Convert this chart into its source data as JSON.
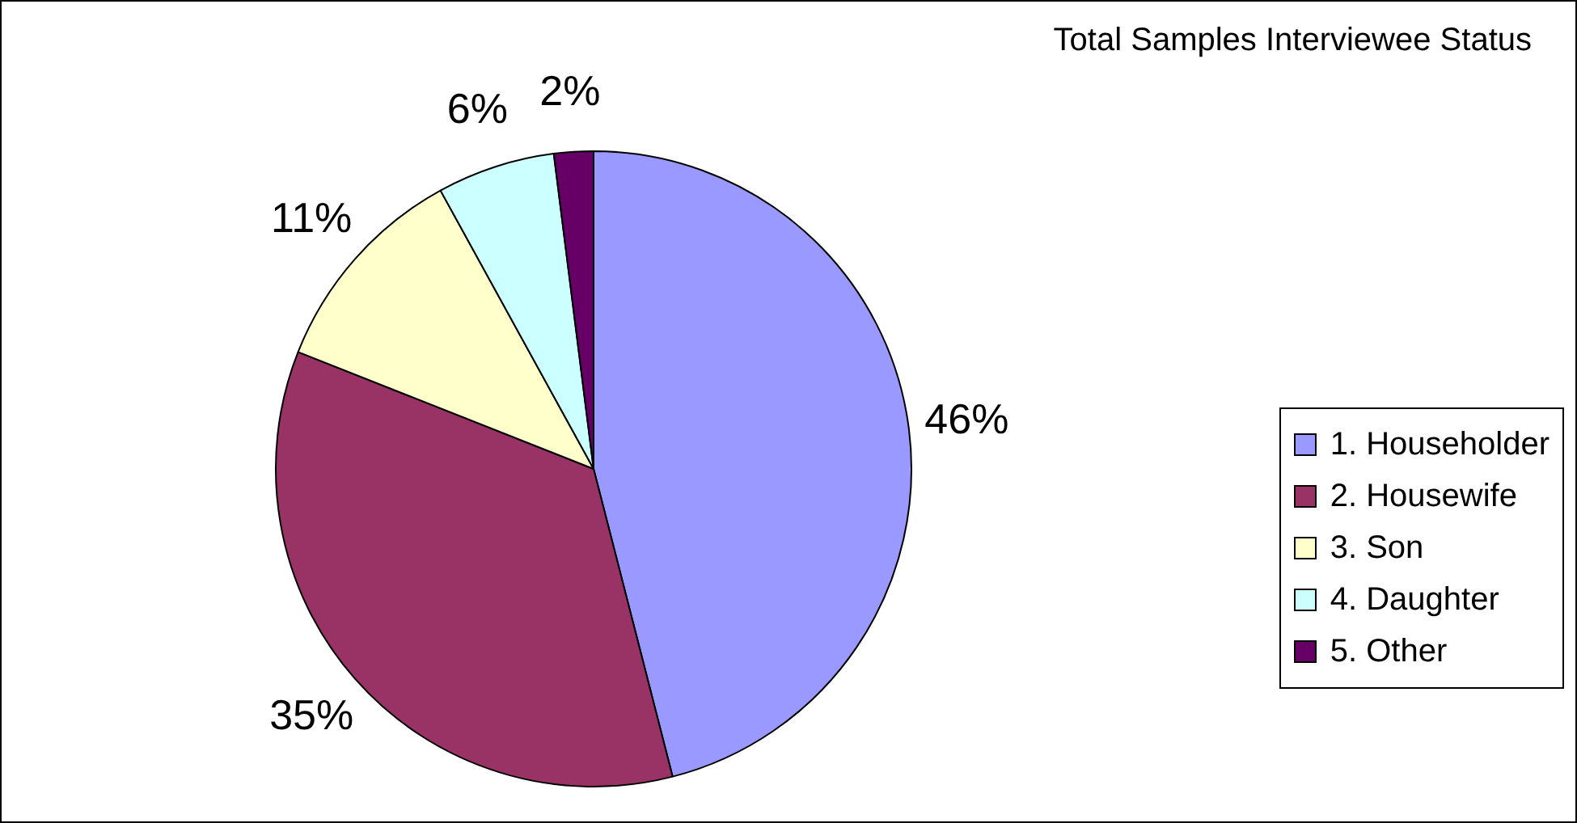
{
  "chart_data": {
    "type": "pie",
    "title": "Total Samples Interviewee Status",
    "categories": [
      "1. Householder",
      "2. Housewife",
      "3. Son",
      "4. Daughter",
      "5. Other"
    ],
    "values": [
      46,
      35,
      11,
      6,
      2
    ],
    "colors": [
      "#9999ff",
      "#993366",
      "#ffffcc",
      "#ccffff",
      "#660066"
    ],
    "value_labels": [
      "46%",
      "35%",
      "11%",
      "6%",
      "2%"
    ],
    "legend": "right"
  }
}
